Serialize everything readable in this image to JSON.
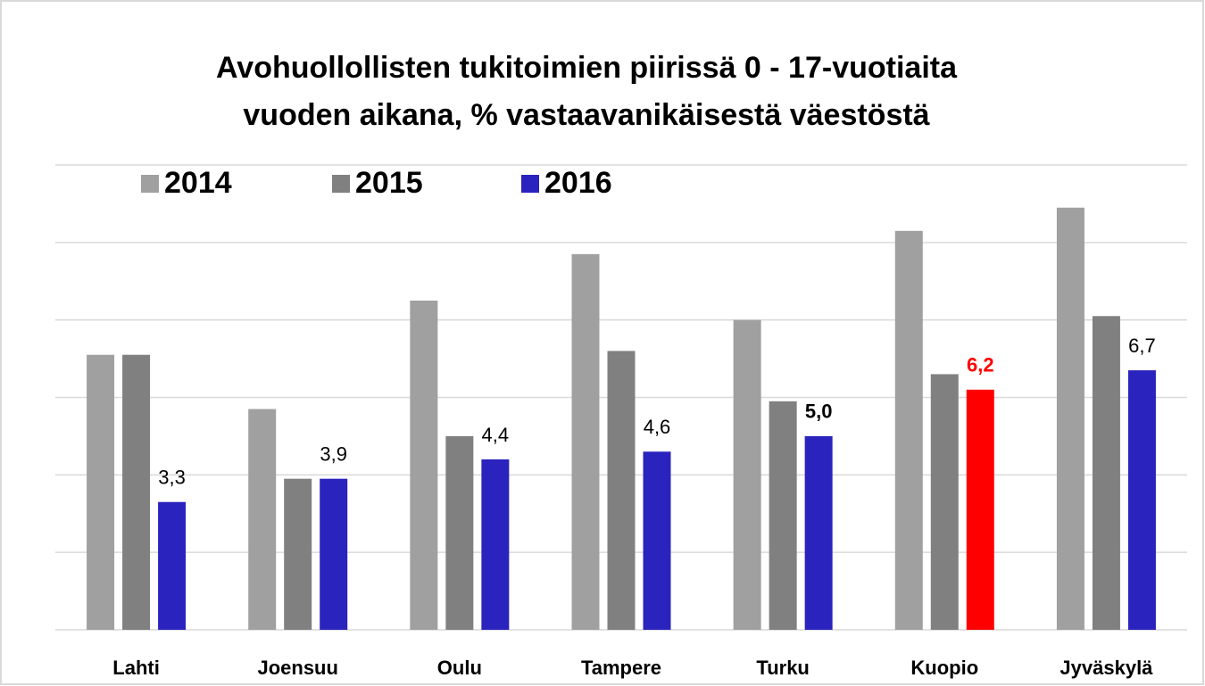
{
  "chart_data": {
    "type": "bar",
    "title": [
      "Avohuollollisten tukitoimien piirissä 0 - 17-vuotiaita",
      "vuoden aikana, % vastaavanikäisestä väestöstä"
    ],
    "categories": [
      "Lahti",
      "Joensuu",
      "Oulu",
      "Tampere",
      "Turku",
      "Kuopio",
      "Jyväskylä"
    ],
    "series": [
      {
        "name": "2014",
        "color": "#a0a0a0",
        "values": [
          7.1,
          5.7,
          8.5,
          9.7,
          8.0,
          10.3,
          10.9
        ]
      },
      {
        "name": "2015",
        "color": "#808080",
        "values": [
          7.1,
          3.9,
          5.0,
          7.2,
          5.9,
          6.6,
          8.1
        ]
      },
      {
        "name": "2016",
        "color": "#2b23bd",
        "values": [
          3.3,
          3.9,
          4.4,
          4.6,
          5.0,
          6.2,
          6.7
        ],
        "value_labels": [
          "3,3",
          "3,9",
          "4,4",
          "4,6",
          "5,0",
          "6,2",
          "6,7"
        ],
        "colors": [
          "#2b23bd",
          "#2b23bd",
          "#2b23bd",
          "#2b23bd",
          "#2b23bd",
          "#ff0000",
          "#2b23bd"
        ],
        "bold_value_labels": [
          false,
          false,
          false,
          false,
          true,
          true,
          false
        ]
      }
    ],
    "ylim": [
      0,
      12
    ],
    "yticks": [
      0,
      2,
      4,
      6,
      8,
      10,
      12
    ],
    "grid": true,
    "legend": "top-left"
  }
}
